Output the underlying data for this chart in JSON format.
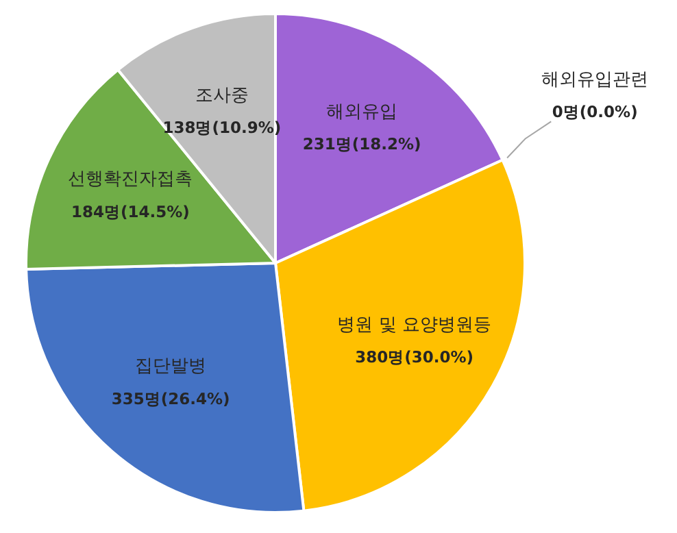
{
  "chart_data": {
    "type": "pie",
    "categories": [
      "해외유입",
      "해외유입관련",
      "병원 및 요양병원등",
      "집단발병",
      "선행확진자접촉",
      "조사중"
    ],
    "values": [
      231,
      0,
      380,
      335,
      184,
      138
    ],
    "colors": [
      "#9e64d6",
      "#5b9bd5",
      "#ffc000",
      "#4472c4",
      "#70ad47",
      "#bfbfbf"
    ],
    "value_labels": [
      "231명(18.2%)",
      "0명(0.0%)",
      "380명(30.0%)",
      "335명(26.4%)",
      "184명(14.5%)",
      "138명(10.9%)"
    ],
    "legend": false
  }
}
